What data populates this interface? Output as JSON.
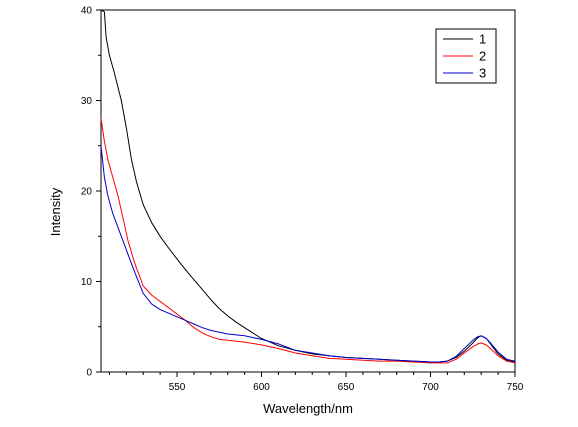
{
  "chart_data": {
    "type": "line",
    "xlabel": "Wavelength/nm",
    "ylabel": "Intensity",
    "xlim": [
      505,
      750
    ],
    "ylim": [
      0,
      40
    ],
    "x_ticks": [
      550,
      600,
      650,
      700,
      750
    ],
    "y_ticks": [
      0,
      10,
      20,
      30,
      40
    ],
    "grid": false,
    "legend_position": "top-right",
    "series": [
      {
        "name": "1",
        "color": "#000000",
        "points": [
          [
            505,
            40
          ],
          [
            507,
            39.8
          ],
          [
            508,
            37
          ],
          [
            510,
            35
          ],
          [
            513,
            33
          ],
          [
            517,
            30
          ],
          [
            520,
            27
          ],
          [
            523,
            23.5
          ],
          [
            526,
            21
          ],
          [
            530,
            18.5
          ],
          [
            535,
            16.5
          ],
          [
            540,
            15
          ],
          [
            545,
            13.7
          ],
          [
            550,
            12.5
          ],
          [
            555,
            11.3
          ],
          [
            560,
            10.2
          ],
          [
            565,
            9.1
          ],
          [
            570,
            8
          ],
          [
            575,
            7
          ],
          [
            580,
            6.2
          ],
          [
            585,
            5.5
          ],
          [
            590,
            4.9
          ],
          [
            595,
            4.3
          ],
          [
            600,
            3.7
          ],
          [
            605,
            3.3
          ],
          [
            610,
            2.9
          ],
          [
            620,
            2.4
          ],
          [
            630,
            2
          ],
          [
            640,
            1.8
          ],
          [
            650,
            1.6
          ],
          [
            660,
            1.5
          ],
          [
            670,
            1.4
          ],
          [
            680,
            1.3
          ],
          [
            690,
            1.2
          ],
          [
            700,
            1.1
          ],
          [
            705,
            1.1
          ],
          [
            710,
            1.2
          ],
          [
            715,
            1.6
          ],
          [
            720,
            2.3
          ],
          [
            725,
            3.2
          ],
          [
            728,
            3.8
          ],
          [
            730,
            4
          ],
          [
            733,
            3.7
          ],
          [
            736,
            3
          ],
          [
            740,
            2
          ],
          [
            745,
            1.3
          ],
          [
            750,
            1.1
          ]
        ]
      },
      {
        "name": "2",
        "color": "#ff0000",
        "points": [
          [
            505,
            28
          ],
          [
            507,
            25.5
          ],
          [
            509,
            23.5
          ],
          [
            512,
            21.5
          ],
          [
            515,
            19.5
          ],
          [
            518,
            17
          ],
          [
            521,
            14.5
          ],
          [
            525,
            12
          ],
          [
            530,
            9.5
          ],
          [
            535,
            8.5
          ],
          [
            540,
            7.8
          ],
          [
            545,
            7.1
          ],
          [
            550,
            6.4
          ],
          [
            555,
            5.7
          ],
          [
            560,
            4.9
          ],
          [
            565,
            4.3
          ],
          [
            570,
            3.9
          ],
          [
            575,
            3.6
          ],
          [
            580,
            3.5
          ],
          [
            590,
            3.3
          ],
          [
            600,
            3
          ],
          [
            610,
            2.6
          ],
          [
            620,
            2.1
          ],
          [
            630,
            1.8
          ],
          [
            640,
            1.5
          ],
          [
            650,
            1.4
          ],
          [
            660,
            1.3
          ],
          [
            670,
            1.2
          ],
          [
            680,
            1.2
          ],
          [
            690,
            1.1
          ],
          [
            700,
            1
          ],
          [
            705,
            1
          ],
          [
            710,
            1
          ],
          [
            715,
            1.4
          ],
          [
            720,
            2.1
          ],
          [
            725,
            2.8
          ],
          [
            728,
            3.1
          ],
          [
            730,
            3.2
          ],
          [
            733,
            3
          ],
          [
            736,
            2.5
          ],
          [
            740,
            1.8
          ],
          [
            745,
            1.2
          ],
          [
            750,
            1
          ]
        ]
      },
      {
        "name": "3",
        "color": "#0000cc",
        "points": [
          [
            505,
            25
          ],
          [
            507,
            21.5
          ],
          [
            509,
            19.5
          ],
          [
            512,
            17.5
          ],
          [
            515,
            16
          ],
          [
            518,
            14.5
          ],
          [
            521,
            13
          ],
          [
            525,
            11
          ],
          [
            530,
            8.7
          ],
          [
            535,
            7.5
          ],
          [
            540,
            6.9
          ],
          [
            545,
            6.5
          ],
          [
            550,
            6.1
          ],
          [
            555,
            5.7
          ],
          [
            560,
            5.3
          ],
          [
            565,
            4.9
          ],
          [
            570,
            4.6
          ],
          [
            575,
            4.4
          ],
          [
            580,
            4.2
          ],
          [
            590,
            4
          ],
          [
            600,
            3.6
          ],
          [
            610,
            3.1
          ],
          [
            620,
            2.4
          ],
          [
            630,
            2.1
          ],
          [
            640,
            1.8
          ],
          [
            650,
            1.6
          ],
          [
            660,
            1.5
          ],
          [
            670,
            1.4
          ],
          [
            680,
            1.3
          ],
          [
            690,
            1.2
          ],
          [
            700,
            1.1
          ],
          [
            705,
            1.1
          ],
          [
            710,
            1.2
          ],
          [
            715,
            1.7
          ],
          [
            720,
            2.6
          ],
          [
            725,
            3.5
          ],
          [
            728,
            3.9
          ],
          [
            730,
            4
          ],
          [
            733,
            3.7
          ],
          [
            736,
            3.1
          ],
          [
            740,
            2.2
          ],
          [
            745,
            1.4
          ],
          [
            750,
            1.2
          ]
        ]
      }
    ]
  }
}
